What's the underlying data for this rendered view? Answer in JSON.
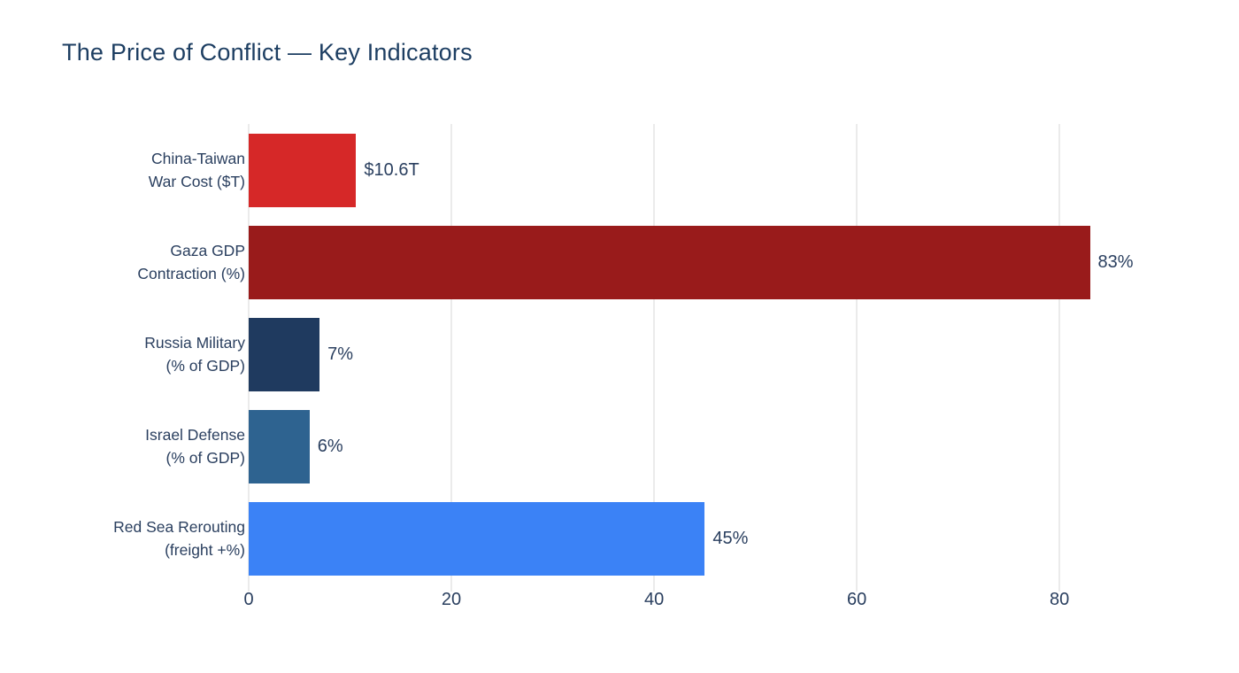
{
  "chart_data": {
    "type": "bar",
    "orientation": "horizontal",
    "title": "The Price of Conflict — Key Indicators",
    "categories": [
      "China-Taiwan\nWar Cost ($T)",
      "Gaza GDP\nContraction (%)",
      "Russia Military\n(% of GDP)",
      "Israel Defense\n(% of GDP)",
      "Red Sea Rerouting\n(freight +%)"
    ],
    "values": [
      10.6,
      83,
      7,
      6,
      45
    ],
    "value_labels": [
      "$10.6T",
      "83%",
      "7%",
      "6%",
      "45%"
    ],
    "bar_colors": [
      "#d62828",
      "#991b1b",
      "#1f3a5f",
      "#2e6390",
      "#3b82f6"
    ],
    "xticks": [
      0,
      20,
      40,
      60,
      80
    ],
    "xlim": [
      0,
      91.6
    ],
    "xlabel": "",
    "ylabel": "",
    "grid": true,
    "grid_color": "#ebebeb",
    "legend": false,
    "background_color": "#ffffff",
    "title_color": "#1d3e62",
    "text_color": "#2a3f5f"
  }
}
